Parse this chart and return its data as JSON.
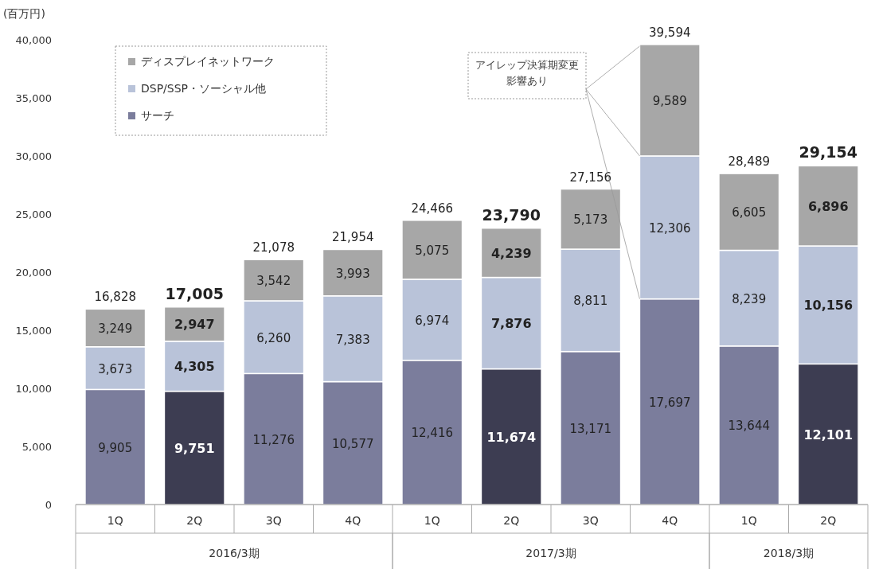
{
  "chart_data": {
    "type": "bar",
    "stacked": true,
    "ylabel": "(百万円)",
    "categories": [
      "1Q",
      "2Q",
      "3Q",
      "4Q",
      "1Q",
      "2Q",
      "3Q",
      "4Q",
      "1Q",
      "2Q"
    ],
    "series": [
      {
        "name": "サーチ",
        "color": "#7b7d9c",
        "colors": [
          "#7b7d9c",
          "#3d3d52",
          "#7b7d9c",
          "#7b7d9c",
          "#7b7d9c",
          "#3d3d52",
          "#7b7d9c",
          "#7b7d9c",
          "#7b7d9c",
          "#3d3d52"
        ],
        "values": [
          9905,
          9751,
          11276,
          10577,
          12416,
          11674,
          13171,
          17697,
          13644,
          12101
        ],
        "value_labels": [
          "9,905",
          "9,751",
          "11,276",
          "10,577",
          "12,416",
          "11,674",
          "13,171",
          "17,697",
          "13,644",
          "12,101"
        ]
      },
      {
        "name": "DSP/SSP・ソーシャル他",
        "color": "#b9c3d9",
        "values": [
          3673,
          4305,
          6260,
          7383,
          6974,
          7876,
          8811,
          12306,
          8239,
          10156
        ],
        "value_labels": [
          "3,673",
          "4,305",
          "6,260",
          "7,383",
          "6,974",
          "7,876",
          "8,811",
          "12,306",
          "8,239",
          "10,156"
        ]
      },
      {
        "name": "ディスプレイネットワーク",
        "color": "#a7a7a7",
        "values": [
          3249,
          2947,
          3542,
          3993,
          5075,
          4239,
          5173,
          9589,
          6605,
          6896
        ],
        "value_labels": [
          "3,249",
          "2,947",
          "3,542",
          "3,993",
          "5,075",
          "4,239",
          "5,173",
          "9,589",
          "6,605",
          "6,896"
        ]
      }
    ],
    "totals": [
      "16,828",
      "17,005",
      "21,078",
      "21,954",
      "24,466",
      "23,790",
      "27,156",
      "39,594",
      "28,489",
      "29,154"
    ],
    "ylim": [
      0,
      40000
    ],
    "yticks": [
      {
        "value": 0,
        "label": "0"
      },
      {
        "value": 5000,
        "label": "5,000"
      },
      {
        "value": 10000,
        "label": "10,000"
      },
      {
        "value": 15000,
        "label": "15,000"
      },
      {
        "value": 20000,
        "label": "20,000"
      },
      {
        "value": 25000,
        "label": "25,000"
      },
      {
        "value": 30000,
        "label": "30,000"
      },
      {
        "value": 35000,
        "label": "35,000"
      },
      {
        "value": 40000,
        "label": "40,000"
      }
    ],
    "legend": "top left",
    "grid": false,
    "annotations": [
      "2016/3期",
      "2017/3期",
      "2018/3期",
      "アイレップ決算期変更影響あり"
    ]
  }
}
